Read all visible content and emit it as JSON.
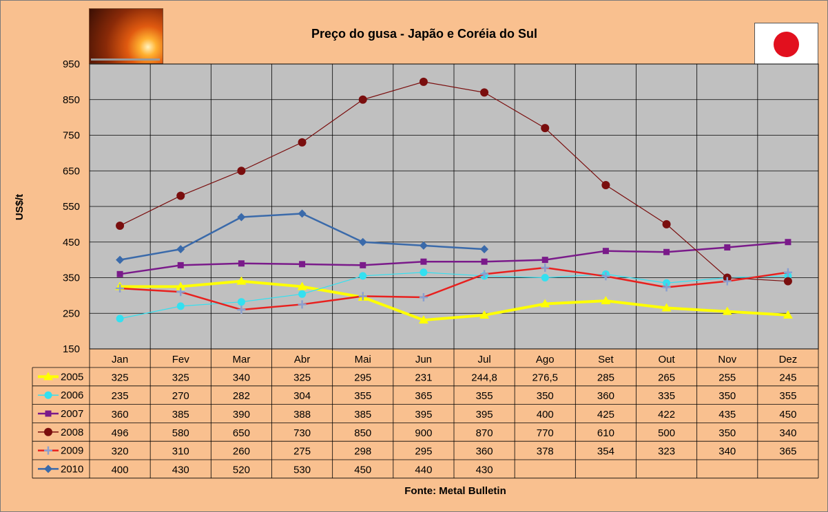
{
  "header": {
    "title": "Preço do gusa - Japão e Coréia do Sul",
    "source": "Fonte: Metal Bulletin",
    "photo_icon": "molten-iron-photo",
    "flag_icon": "japan-flag-icon"
  },
  "chart_data": {
    "type": "line",
    "title": "Preço do gusa - Japão e Coréia do Sul",
    "xlabel": "",
    "ylabel": "US$/t",
    "ylim": [
      150,
      950
    ],
    "yticks": [
      150,
      250,
      350,
      450,
      550,
      650,
      750,
      850,
      950
    ],
    "grid": true,
    "legend": "data-table-left",
    "categories": [
      "Jan",
      "Fev",
      "Mar",
      "Abr",
      "Mai",
      "Jun",
      "Jul",
      "Ago",
      "Set",
      "Out",
      "Nov",
      "Dez"
    ],
    "series": [
      {
        "name": "2005",
        "values": [
          325,
          325,
          340,
          325,
          295,
          231,
          244.8,
          276.5,
          285,
          265,
          255,
          245
        ],
        "labels": [
          "325",
          "325",
          "340",
          "325",
          "295",
          "231",
          "244,8",
          "276,5",
          "285",
          "265",
          "255",
          "245"
        ],
        "color": "#ffff00",
        "marker": "triangle",
        "width": 4
      },
      {
        "name": "2006",
        "values": [
          235,
          270,
          282,
          304,
          355,
          365,
          355,
          350,
          360,
          335,
          350,
          355
        ],
        "labels": [
          "235",
          "270",
          "282",
          "304",
          "355",
          "365",
          "355",
          "350",
          "360",
          "335",
          "350",
          "355"
        ],
        "color": "#33e0f0",
        "marker": "circle",
        "width": 1.2
      },
      {
        "name": "2007",
        "values": [
          360,
          385,
          390,
          388,
          385,
          395,
          395,
          400,
          425,
          422,
          435,
          450
        ],
        "labels": [
          "360",
          "385",
          "390",
          "388",
          "385",
          "395",
          "395",
          "400",
          "425",
          "422",
          "435",
          "450"
        ],
        "color": "#7a1a8a",
        "marker": "square",
        "width": 2.5
      },
      {
        "name": "2008",
        "values": [
          496,
          580,
          650,
          730,
          850,
          900,
          870,
          770,
          610,
          500,
          350,
          340
        ],
        "labels": [
          "496",
          "580",
          "650",
          "730",
          "850",
          "900",
          "870",
          "770",
          "610",
          "500",
          "350",
          "340"
        ],
        "color": "#7a0e0e",
        "marker": "circle-big",
        "width": 1.2
      },
      {
        "name": "2009",
        "values": [
          320,
          310,
          260,
          275,
          298,
          295,
          360,
          378,
          354,
          323,
          340,
          365
        ],
        "labels": [
          "320",
          "310",
          "260",
          "275",
          "298",
          "295",
          "360",
          "378",
          "354",
          "323",
          "340",
          "365"
        ],
        "color": "#e8201e",
        "marker": "plus",
        "width": 2.5
      },
      {
        "name": "2010",
        "values": [
          400,
          430,
          520,
          530,
          450,
          440,
          430,
          null,
          null,
          null,
          null,
          null
        ],
        "labels": [
          "400",
          "430",
          "520",
          "530",
          "450",
          "440",
          "430",
          "",
          "",
          "",
          "",
          ""
        ],
        "color": "#3a6aaa",
        "marker": "diamond",
        "width": 2.5
      }
    ]
  }
}
